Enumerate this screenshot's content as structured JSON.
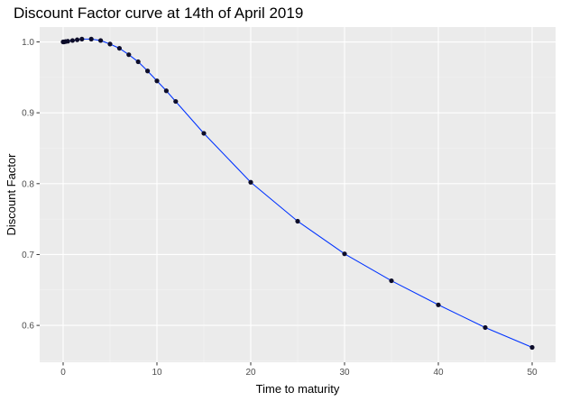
{
  "chart_data": {
    "type": "line",
    "title": "Discount Factor curve at 14th of April 2019",
    "xlabel": "Time to maturity",
    "ylabel": "Discount Factor",
    "xlim": [
      -2.5,
      52.5
    ],
    "ylim": [
      0.548,
      1.021
    ],
    "x_ticks": [
      0,
      10,
      20,
      30,
      40,
      50
    ],
    "x_tick_labels": [
      "0",
      "10",
      "20",
      "30",
      "40",
      "50"
    ],
    "x_minor_ticks": [
      5,
      15,
      25,
      35,
      45
    ],
    "y_ticks": [
      0.6,
      0.7,
      0.8,
      0.9,
      1.0
    ],
    "y_tick_labels": [
      "0.6",
      "0.7",
      "0.8",
      "0.9",
      "1.0"
    ],
    "y_minor_ticks": [
      0.55,
      0.65,
      0.75,
      0.85,
      0.95
    ],
    "grid": true,
    "background": "#ebebeb",
    "line_color": "#0033ff",
    "point_color": "#0d0d2a",
    "series": [
      {
        "x": [
          0.0,
          0.08,
          0.25,
          0.5,
          1,
          1.5,
          2,
          3,
          4,
          5,
          6,
          7,
          8,
          9,
          10,
          11,
          12,
          15,
          20,
          25,
          30,
          35,
          40,
          45,
          50
        ],
        "values": [
          1.0,
          1.0,
          1.0005,
          1.001,
          1.002,
          1.003,
          1.004,
          1.004,
          1.002,
          0.997,
          0.991,
          0.982,
          0.972,
          0.959,
          0.945,
          0.931,
          0.916,
          0.871,
          0.802,
          0.747,
          0.701,
          0.663,
          0.629,
          0.597,
          0.569
        ]
      }
    ]
  }
}
